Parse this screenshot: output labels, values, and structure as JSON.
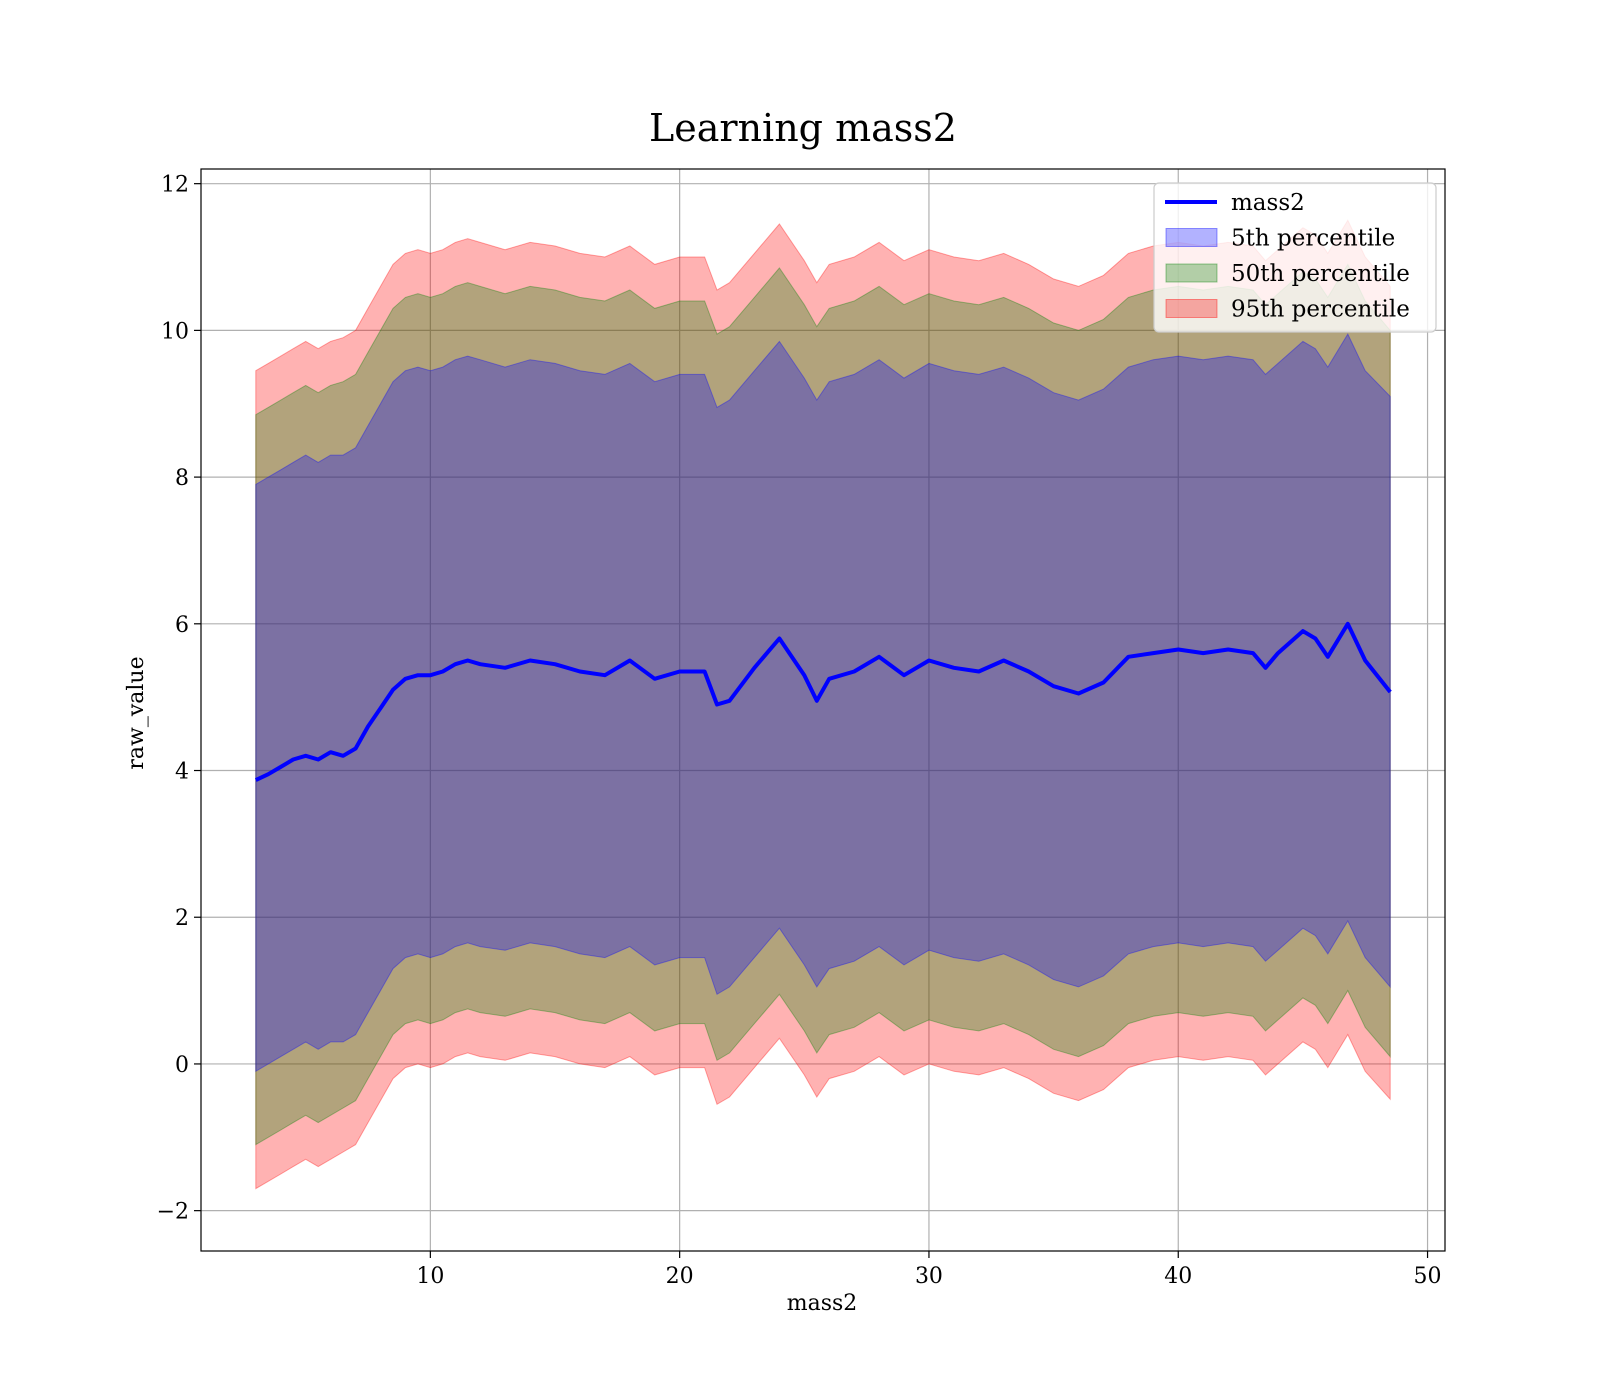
{
  "chart_data": {
    "type": "area",
    "title": "Learning mass2",
    "xlabel": "mass2",
    "ylabel": "raw_value",
    "xlim": [
      0.8,
      50.7
    ],
    "ylim": [
      -2.55,
      12.2
    ],
    "xticks": [
      10,
      20,
      30,
      40,
      50
    ],
    "yticks": [
      -2,
      0,
      2,
      4,
      6,
      8,
      10,
      12
    ],
    "xtick_labels": [
      "10",
      "20",
      "30",
      "40",
      "50"
    ],
    "ytick_labels": [
      "−2",
      "0",
      "2",
      "4",
      "6",
      "8",
      "10",
      "12"
    ],
    "grid": true,
    "legend": {
      "placement": "top-right",
      "entries": [
        {
          "label": "mass2",
          "kind": "line",
          "color": "#0000ff"
        },
        {
          "label": "5th percentile",
          "kind": "patch",
          "color": "#0000ff"
        },
        {
          "label": "50th percentile",
          "kind": "patch",
          "color": "#008000"
        },
        {
          "label": "95th percentile",
          "kind": "patch",
          "color": "#ff0000"
        }
      ]
    },
    "colors": {
      "line": "#0000ff",
      "p5": "#0000ff",
      "p50": "#008000",
      "p95": "#ff0000"
    },
    "x": [
      3.0,
      3.5,
      4.0,
      4.5,
      5.0,
      5.5,
      6.0,
      6.5,
      7.0,
      7.5,
      8.0,
      8.5,
      9.0,
      9.5,
      10.0,
      10.5,
      11.0,
      11.5,
      12.0,
      13.0,
      14.0,
      15.0,
      16.0,
      17.0,
      18.0,
      19.0,
      20.0,
      21.0,
      21.5,
      22.0,
      23.0,
      24.0,
      25.0,
      25.5,
      26.0,
      27.0,
      28.0,
      29.0,
      30.0,
      31.0,
      32.0,
      33.0,
      34.0,
      35.0,
      36.0,
      37.0,
      38.0,
      39.0,
      40.0,
      41.0,
      42.0,
      43.0,
      43.5,
      44.0,
      45.0,
      45.5,
      46.0,
      46.8,
      47.5,
      48.5
    ],
    "series": [
      {
        "name": "mass2",
        "role": "line",
        "values": [
          3.87,
          3.95,
          4.05,
          4.15,
          4.2,
          4.15,
          4.25,
          4.2,
          4.3,
          4.6,
          4.85,
          5.1,
          5.25,
          5.3,
          5.3,
          5.35,
          5.45,
          5.5,
          5.45,
          5.4,
          5.5,
          5.45,
          5.35,
          5.3,
          5.5,
          5.25,
          5.35,
          5.35,
          4.9,
          4.95,
          5.4,
          5.8,
          5.3,
          4.95,
          5.25,
          5.35,
          5.55,
          5.3,
          5.5,
          5.4,
          5.35,
          5.5,
          5.35,
          5.15,
          5.05,
          5.2,
          5.55,
          5.6,
          5.65,
          5.6,
          5.65,
          5.6,
          5.4,
          5.6,
          5.9,
          5.8,
          5.55,
          6.0,
          5.5,
          5.07
        ]
      },
      {
        "name": "5th percentile",
        "role": "band",
        "low": [
          -0.1,
          0.0,
          0.1,
          0.2,
          0.3,
          0.2,
          0.3,
          0.3,
          0.4,
          0.7,
          1.0,
          1.3,
          1.45,
          1.5,
          1.45,
          1.5,
          1.6,
          1.65,
          1.6,
          1.55,
          1.65,
          1.6,
          1.5,
          1.45,
          1.6,
          1.35,
          1.45,
          1.45,
          0.95,
          1.05,
          1.45,
          1.85,
          1.35,
          1.05,
          1.3,
          1.4,
          1.6,
          1.35,
          1.55,
          1.45,
          1.4,
          1.5,
          1.35,
          1.15,
          1.05,
          1.2,
          1.5,
          1.6,
          1.65,
          1.6,
          1.65,
          1.6,
          1.4,
          1.55,
          1.85,
          1.75,
          1.5,
          1.95,
          1.45,
          1.05
        ],
        "high": [
          7.9,
          8.0,
          8.1,
          8.2,
          8.3,
          8.2,
          8.3,
          8.3,
          8.4,
          8.7,
          9.0,
          9.3,
          9.45,
          9.5,
          9.45,
          9.5,
          9.6,
          9.65,
          9.6,
          9.5,
          9.6,
          9.55,
          9.45,
          9.4,
          9.55,
          9.3,
          9.4,
          9.4,
          8.95,
          9.05,
          9.45,
          9.85,
          9.35,
          9.05,
          9.3,
          9.4,
          9.6,
          9.35,
          9.55,
          9.45,
          9.4,
          9.5,
          9.35,
          9.15,
          9.05,
          9.2,
          9.5,
          9.6,
          9.65,
          9.6,
          9.65,
          9.6,
          9.4,
          9.55,
          9.85,
          9.75,
          9.5,
          9.95,
          9.45,
          9.1
        ]
      },
      {
        "name": "50th percentile",
        "role": "band",
        "low": [
          -1.1,
          -1.0,
          -0.9,
          -0.8,
          -0.7,
          -0.8,
          -0.7,
          -0.6,
          -0.5,
          -0.2,
          0.1,
          0.4,
          0.55,
          0.6,
          0.55,
          0.6,
          0.7,
          0.75,
          0.7,
          0.65,
          0.75,
          0.7,
          0.6,
          0.55,
          0.7,
          0.45,
          0.55,
          0.55,
          0.05,
          0.15,
          0.55,
          0.95,
          0.45,
          0.15,
          0.4,
          0.5,
          0.7,
          0.45,
          0.6,
          0.5,
          0.45,
          0.55,
          0.4,
          0.2,
          0.1,
          0.25,
          0.55,
          0.65,
          0.7,
          0.65,
          0.7,
          0.65,
          0.45,
          0.6,
          0.9,
          0.8,
          0.55,
          1.0,
          0.5,
          0.1
        ],
        "high": [
          8.85,
          8.95,
          9.05,
          9.15,
          9.25,
          9.15,
          9.25,
          9.3,
          9.4,
          9.7,
          10.0,
          10.3,
          10.45,
          10.5,
          10.45,
          10.5,
          10.6,
          10.65,
          10.6,
          10.5,
          10.6,
          10.55,
          10.45,
          10.4,
          10.55,
          10.3,
          10.4,
          10.4,
          9.95,
          10.05,
          10.45,
          10.85,
          10.35,
          10.05,
          10.3,
          10.4,
          10.6,
          10.35,
          10.5,
          10.4,
          10.35,
          10.45,
          10.3,
          10.1,
          10.0,
          10.15,
          10.45,
          10.55,
          10.6,
          10.55,
          10.6,
          10.55,
          10.35,
          10.5,
          10.8,
          10.7,
          10.45,
          10.9,
          10.4,
          10.0
        ]
      },
      {
        "name": "95th percentile",
        "role": "band",
        "low": [
          -1.7,
          -1.6,
          -1.5,
          -1.4,
          -1.3,
          -1.4,
          -1.3,
          -1.2,
          -1.1,
          -0.8,
          -0.5,
          -0.2,
          -0.05,
          0.0,
          -0.05,
          0.0,
          0.1,
          0.15,
          0.1,
          0.05,
          0.15,
          0.1,
          0.0,
          -0.05,
          0.1,
          -0.15,
          -0.05,
          -0.05,
          -0.55,
          -0.45,
          -0.05,
          0.35,
          -0.15,
          -0.45,
          -0.2,
          -0.1,
          0.1,
          -0.15,
          0.0,
          -0.1,
          -0.15,
          -0.05,
          -0.2,
          -0.4,
          -0.5,
          -0.35,
          -0.05,
          0.05,
          0.1,
          0.05,
          0.1,
          0.05,
          -0.15,
          0.0,
          0.3,
          0.2,
          -0.05,
          0.4,
          -0.1,
          -0.48
        ],
        "high": [
          9.45,
          9.55,
          9.65,
          9.75,
          9.85,
          9.75,
          9.85,
          9.9,
          10.0,
          10.3,
          10.6,
          10.9,
          11.05,
          11.1,
          11.05,
          11.1,
          11.2,
          11.25,
          11.2,
          11.1,
          11.2,
          11.15,
          11.05,
          11.0,
          11.15,
          10.9,
          11.0,
          11.0,
          10.55,
          10.65,
          11.05,
          11.45,
          10.95,
          10.65,
          10.9,
          11.0,
          11.2,
          10.95,
          11.1,
          11.0,
          10.95,
          11.05,
          10.9,
          10.7,
          10.6,
          10.75,
          11.05,
          11.15,
          11.2,
          11.15,
          11.2,
          11.15,
          10.95,
          11.1,
          11.4,
          11.3,
          11.05,
          11.5,
          11.0,
          10.6
        ]
      }
    ]
  }
}
